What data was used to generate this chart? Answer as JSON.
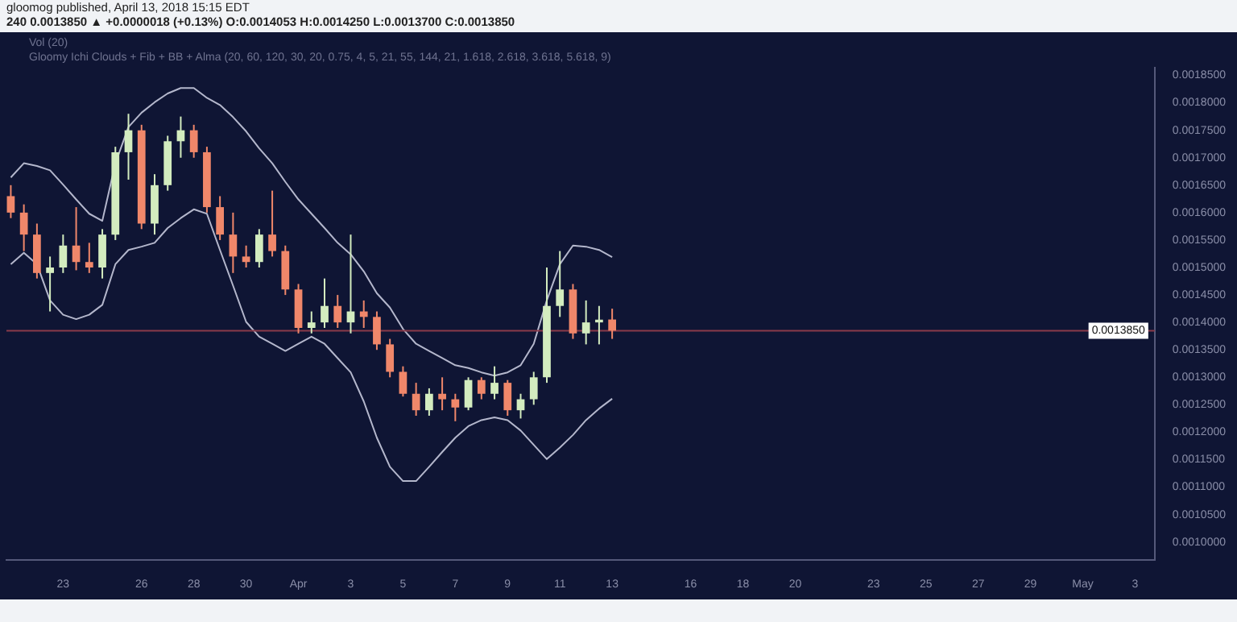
{
  "chart_data": {
    "type": "candlestick",
    "title": "gloomog published, April 13, 2018 15:15 EDT",
    "subtitle": "240 0.0013850 ▲ +0.0000018 (+0.13%) O:0.0014053 H:0.0014250 L:0.0013700 C:0.0013850",
    "annotations": [
      "Vol (20)",
      "Gloomy Ichi Clouds + Fib + BB + Alma (20, 60, 120, 30, 20, 0.75, 4, 5, 21, 55, 144, 21, 1.618, 2.618, 3.618, 5.618, 9)"
    ],
    "x": [
      "2018-03-21T00:00",
      "2018-03-21T12:00",
      "2018-03-22T00:00",
      "2018-03-22T12:00",
      "2018-03-23T00:00",
      "2018-03-23T12:00",
      "2018-03-24T00:00",
      "2018-03-24T12:00",
      "2018-03-25T00:00",
      "2018-03-25T12:00",
      "2018-03-26T00:00",
      "2018-03-26T12:00",
      "2018-03-27T00:00",
      "2018-03-27T12:00",
      "2018-03-28T00:00",
      "2018-03-28T12:00",
      "2018-03-29T00:00",
      "2018-03-29T12:00",
      "2018-03-30T00:00",
      "2018-03-30T12:00",
      "2018-03-31T00:00",
      "2018-03-31T12:00",
      "2018-04-01T00:00",
      "2018-04-01T12:00",
      "2018-04-02T00:00",
      "2018-04-02T12:00",
      "2018-04-03T00:00",
      "2018-04-03T12:00",
      "2018-04-04T00:00",
      "2018-04-04T12:00",
      "2018-04-05T00:00",
      "2018-04-05T12:00",
      "2018-04-06T00:00",
      "2018-04-06T12:00",
      "2018-04-07T00:00",
      "2018-04-07T12:00",
      "2018-04-08T00:00",
      "2018-04-08T12:00",
      "2018-04-09T00:00",
      "2018-04-09T12:00",
      "2018-04-10T00:00",
      "2018-04-10T12:00",
      "2018-04-11T00:00",
      "2018-04-11T12:00",
      "2018-04-12T00:00",
      "2018-04-12T12:00",
      "2018-04-13T00:00"
    ],
    "ohlc": [
      [
        0.00163,
        0.00165,
        0.00159,
        0.0016
      ],
      [
        0.0016,
        0.001615,
        0.00153,
        0.00156
      ],
      [
        0.00156,
        0.00158,
        0.00148,
        0.00149
      ],
      [
        0.00149,
        0.00152,
        0.00142,
        0.0015
      ],
      [
        0.0015,
        0.00156,
        0.00149,
        0.00154
      ],
      [
        0.00154,
        0.00161,
        0.001495,
        0.00151
      ],
      [
        0.00151,
        0.001545,
        0.00149,
        0.0015
      ],
      [
        0.0015,
        0.00157,
        0.00148,
        0.00156
      ],
      [
        0.00156,
        0.00172,
        0.00155,
        0.00171
      ],
      [
        0.00171,
        0.00178,
        0.00166,
        0.00175
      ],
      [
        0.00175,
        0.00176,
        0.00157,
        0.00158
      ],
      [
        0.00158,
        0.00167,
        0.00156,
        0.00165
      ],
      [
        0.00165,
        0.00174,
        0.00164,
        0.00173
      ],
      [
        0.00173,
        0.001775,
        0.0017,
        0.00175
      ],
      [
        0.00175,
        0.00176,
        0.0017,
        0.00171
      ],
      [
        0.00171,
        0.00172,
        0.0016,
        0.00161
      ],
      [
        0.00161,
        0.00163,
        0.00155,
        0.00156
      ],
      [
        0.00156,
        0.0016,
        0.00149,
        0.00152
      ],
      [
        0.00152,
        0.00154,
        0.0015,
        0.00151
      ],
      [
        0.00151,
        0.00157,
        0.0015,
        0.00156
      ],
      [
        0.00156,
        0.00164,
        0.00152,
        0.00153
      ],
      [
        0.00153,
        0.00154,
        0.00145,
        0.00146
      ],
      [
        0.00146,
        0.00147,
        0.00138,
        0.00139
      ],
      [
        0.00139,
        0.00142,
        0.00138,
        0.0014
      ],
      [
        0.0014,
        0.00148,
        0.00139,
        0.00143
      ],
      [
        0.00143,
        0.00145,
        0.00139,
        0.0014
      ],
      [
        0.0014,
        0.00156,
        0.00138,
        0.00142
      ],
      [
        0.00142,
        0.00144,
        0.00139,
        0.00141
      ],
      [
        0.00141,
        0.00142,
        0.00135,
        0.00136
      ],
      [
        0.00136,
        0.00137,
        0.0013,
        0.00131
      ],
      [
        0.00131,
        0.00132,
        0.001265,
        0.00127
      ],
      [
        0.00127,
        0.00129,
        0.00123,
        0.00124
      ],
      [
        0.00124,
        0.00128,
        0.00123,
        0.00127
      ],
      [
        0.00127,
        0.0013,
        0.00124,
        0.00126
      ],
      [
        0.00126,
        0.00127,
        0.00122,
        0.001245
      ],
      [
        0.001245,
        0.0013,
        0.00124,
        0.001295
      ],
      [
        0.001295,
        0.0013,
        0.00126,
        0.00127
      ],
      [
        0.00127,
        0.00132,
        0.00126,
        0.00129
      ],
      [
        0.00129,
        0.001295,
        0.00123,
        0.00124
      ],
      [
        0.00124,
        0.00127,
        0.001225,
        0.00126
      ],
      [
        0.00126,
        0.00131,
        0.00125,
        0.0013
      ],
      [
        0.0013,
        0.0015,
        0.00129,
        0.00143
      ],
      [
        0.00143,
        0.00153,
        0.00141,
        0.00146
      ],
      [
        0.00146,
        0.00147,
        0.00137,
        0.00138
      ],
      [
        0.00138,
        0.00144,
        0.00136,
        0.0014
      ],
      [
        0.0014,
        0.00143,
        0.00136,
        0.001405
      ],
      [
        0.0014053,
        0.001425,
        0.00137,
        0.001385
      ]
    ],
    "colors": [
      "#f0876a",
      "#f0876a",
      "#f0876a",
      "#d3ecbf",
      "#d3ecbf",
      "#f0876a",
      "#f0876a",
      "#d3ecbf",
      "#d3ecbf",
      "#d3ecbf",
      "#f0876a",
      "#d3ecbf",
      "#d3ecbf",
      "#d3ecbf",
      "#f0876a",
      "#f0876a",
      "#f0876a",
      "#f0876a",
      "#f0876a",
      "#d3ecbf",
      "#f0876a",
      "#f0876a",
      "#f0876a",
      "#d3ecbf",
      "#d3ecbf",
      "#f0876a",
      "#d3ecbf",
      "#f0876a",
      "#f0876a",
      "#f0876a",
      "#f0876a",
      "#f0876a",
      "#d3ecbf",
      "#f0876a",
      "#f0876a",
      "#d3ecbf",
      "#f0876a",
      "#d3ecbf",
      "#f0876a",
      "#d3ecbf",
      "#d3ecbf",
      "#d3ecbf",
      "#d3ecbf",
      "#f0876a",
      "#d3ecbf",
      "#d3ecbf",
      "#f0876a"
    ],
    "series": [
      {
        "type": "line",
        "color": "#b4b7cc",
        "values": [
          0.001664,
          0.00169,
          0.001685,
          0.001677,
          0.001651,
          0.001624,
          0.001598,
          0.001585,
          0.00169,
          0.001756,
          0.001782,
          0.001801,
          0.001817,
          0.001827,
          0.001827,
          0.001809,
          0.001796,
          0.001774,
          0.001748,
          0.001717,
          0.00169,
          0.001656,
          0.001624,
          0.001598,
          0.001572,
          0.001545,
          0.001524,
          0.001493,
          0.001453,
          0.001427,
          0.001388,
          0.001361,
          0.001348,
          0.001335,
          0.001322,
          0.001317,
          0.001309,
          0.001303,
          0.001309,
          0.001322,
          0.001361,
          0.00144,
          0.001506,
          0.00154,
          0.001538,
          0.001532,
          0.001519
        ]
      },
      {
        "type": "line",
        "color": "#b4b7cc",
        "values": [
          0.001506,
          0.001527,
          0.001506,
          0.00144,
          0.001414,
          0.001406,
          0.001414,
          0.001432,
          0.001506,
          0.001532,
          0.001538,
          0.001545,
          0.001572,
          0.00159,
          0.001606,
          0.001598,
          0.001532,
          0.001467,
          0.001401,
          0.001374,
          0.001361,
          0.001348,
          0.001361,
          0.001374,
          0.001361,
          0.001335,
          0.001309,
          0.001256,
          0.00119,
          0.001137,
          0.001111,
          0.001111,
          0.001137,
          0.001164,
          0.00119,
          0.001211,
          0.001222,
          0.001227,
          0.001222,
          0.001203,
          0.001177,
          0.001151,
          0.001172,
          0.001195,
          0.001222,
          0.001243,
          0.001261
        ]
      }
    ],
    "ref_lines": [
      {
        "axis": "y",
        "value": 0.001385,
        "label": "0.0013850",
        "color": "#8a3a4a"
      }
    ],
    "xlim": [
      "2018-03-20T20:00",
      "2018-05-03T18:00"
    ],
    "xticks": [
      {
        "value": "2018-03-23",
        "label": "23"
      },
      {
        "value": "2018-03-26",
        "label": "26"
      },
      {
        "value": "2018-03-28",
        "label": "28"
      },
      {
        "value": "2018-03-30",
        "label": "30"
      },
      {
        "value": "2018-04-01",
        "label": "Apr"
      },
      {
        "value": "2018-04-03",
        "label": "3"
      },
      {
        "value": "2018-04-05",
        "label": "5"
      },
      {
        "value": "2018-04-07",
        "label": "7"
      },
      {
        "value": "2018-04-09",
        "label": "9"
      },
      {
        "value": "2018-04-11",
        "label": "11"
      },
      {
        "value": "2018-04-13",
        "label": "13"
      },
      {
        "value": "2018-04-16",
        "label": "16"
      },
      {
        "value": "2018-04-18",
        "label": "18"
      },
      {
        "value": "2018-04-20",
        "label": "20"
      },
      {
        "value": "2018-04-23",
        "label": "23"
      },
      {
        "value": "2018-04-25",
        "label": "25"
      },
      {
        "value": "2018-04-27",
        "label": "27"
      },
      {
        "value": "2018-04-29",
        "label": "29"
      },
      {
        "value": "2018-05-01",
        "label": "May"
      },
      {
        "value": "2018-05-03",
        "label": "3"
      }
    ],
    "ylim": [
      0.000967,
      0.001864
    ],
    "yticks": [
      {
        "value": 0.001,
        "label": "0.0010000"
      },
      {
        "value": 0.00105,
        "label": "0.0010500"
      },
      {
        "value": 0.0011,
        "label": "0.0011000"
      },
      {
        "value": 0.00115,
        "label": "0.0011500"
      },
      {
        "value": 0.0012,
        "label": "0.0012000"
      },
      {
        "value": 0.00125,
        "label": "0.0012500"
      },
      {
        "value": 0.0013,
        "label": "0.0013000"
      },
      {
        "value": 0.00135,
        "label": "0.0013500"
      },
      {
        "value": 0.0014,
        "label": "0.0014000"
      },
      {
        "value": 0.00145,
        "label": "0.0014500"
      },
      {
        "value": 0.0015,
        "label": "0.0015000"
      },
      {
        "value": 0.00155,
        "label": "0.0015500"
      },
      {
        "value": 0.0016,
        "label": "0.0016000"
      },
      {
        "value": 0.00165,
        "label": "0.0016500"
      },
      {
        "value": 0.0017,
        "label": "0.0017000"
      },
      {
        "value": 0.00175,
        "label": "0.0017500"
      },
      {
        "value": 0.0018,
        "label": "0.0018000"
      },
      {
        "value": 0.00185,
        "label": "0.0018500"
      }
    ],
    "grid": false,
    "legend": false
  }
}
